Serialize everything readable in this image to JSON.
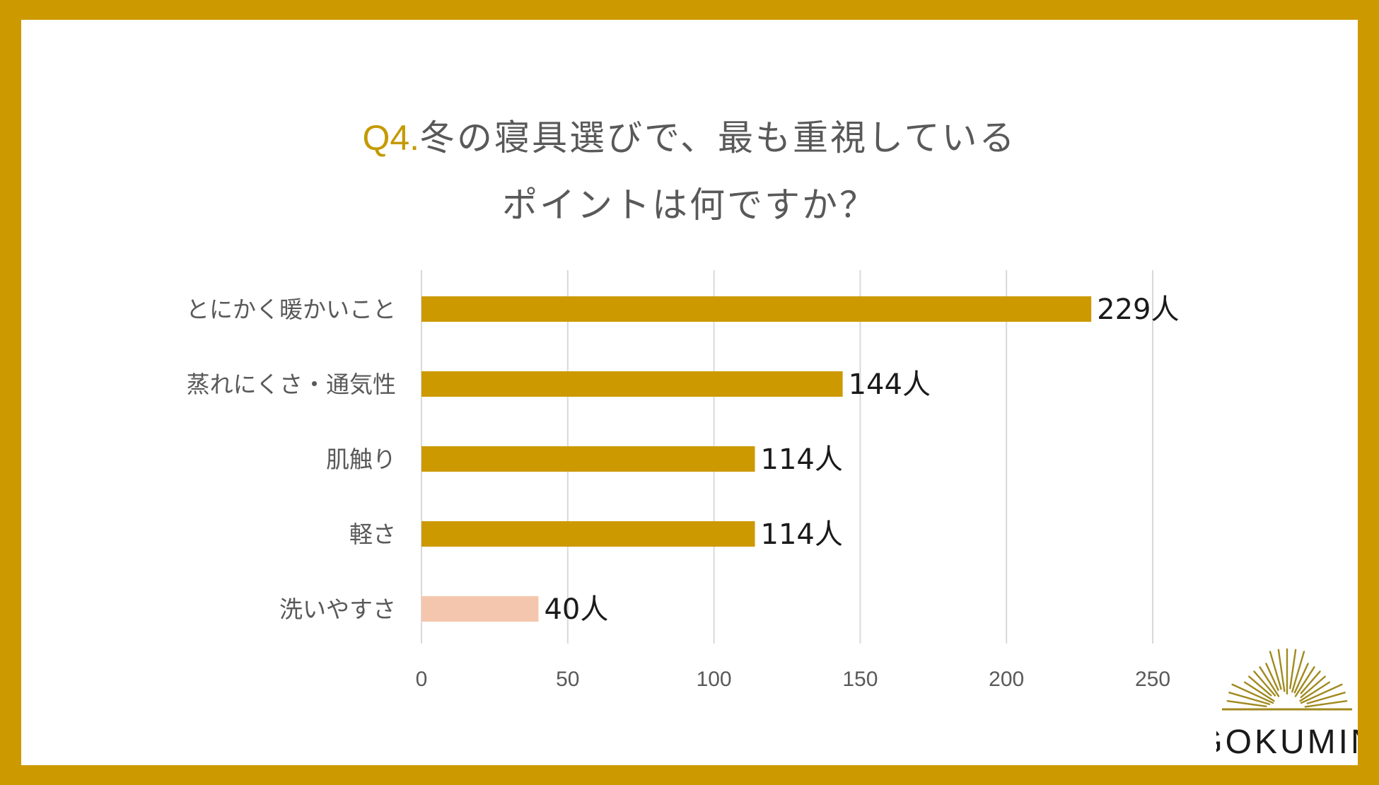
{
  "title": {
    "prefix": "Q4.",
    "line1": "冬の寝具選びで、最も重視している",
    "line2": "ポイントは何ですか？"
  },
  "chart_data": {
    "type": "bar",
    "orientation": "horizontal",
    "categories": [
      "とにかく暖かいこと",
      "蒸れにくさ・通気性",
      "肌触り",
      "軽さ",
      "洗いやすさ"
    ],
    "values": [
      229,
      144,
      114,
      114,
      40
    ],
    "value_suffix": "人",
    "xlim": [
      0,
      250
    ],
    "xticks": [
      0,
      50,
      100,
      150,
      200,
      250
    ],
    "grid": true,
    "colors": [
      "#cc9900",
      "#cc9900",
      "#cc9900",
      "#cc9900",
      "#f5c6ae"
    ]
  },
  "logo": {
    "text": "GOKUMIN",
    "color": "#a08a1e"
  },
  "colors": {
    "frame": "#cc9900",
    "title_prefix": "#c49a00",
    "text": "#595959",
    "grid": "#d9d9d9"
  }
}
